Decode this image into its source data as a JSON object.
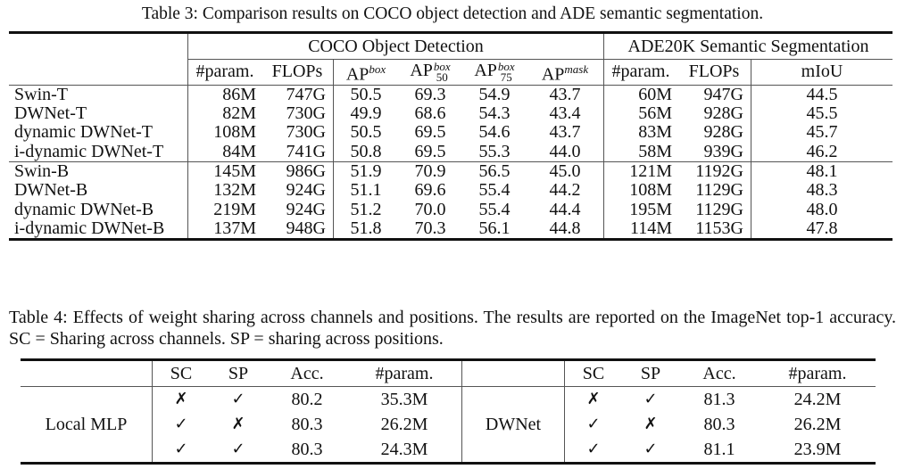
{
  "table3": {
    "caption_label": "Table 3:",
    "caption_text": "Comparison results on COCO object detection and ADE semantic segmentation.",
    "group_headers": [
      "COCO Object Detection",
      "ADE20K Semantic Segmentation"
    ],
    "columns": {
      "coco_param": "#param.",
      "coco_flops": "FLOPs",
      "ap_box_base": "AP",
      "ap_box_sup": "box",
      "ap50_base": "AP",
      "ap50_sup": "box",
      "ap50_sub": "50",
      "ap75_base": "AP",
      "ap75_sup": "box",
      "ap75_sub": "75",
      "apmask_base": "AP",
      "apmask_sup": "mask",
      "ade_param": "#param.",
      "ade_flops": "FLOPs",
      "miou": "mIoU"
    },
    "rows": [
      {
        "name": "Swin-T",
        "cp": "86M",
        "cf": "747G",
        "ap": "50.5",
        "ap50": "69.3",
        "ap75": "54.9",
        "apm": "43.7",
        "ap_": "60M",
        "af": "947G",
        "miou": "44.5"
      },
      {
        "name": "DWNet-T",
        "cp": "82M",
        "cf": "730G",
        "ap": "49.9",
        "ap50": "68.6",
        "ap75": "54.3",
        "apm": "43.4",
        "ap_": "56M",
        "af": "928G",
        "miou": "45.5"
      },
      {
        "name": "dynamic DWNet-T",
        "cp": "108M",
        "cf": "730G",
        "ap": "50.5",
        "ap50": "69.5",
        "ap75": "54.6",
        "apm": "43.7",
        "ap_": "83M",
        "af": "928G",
        "miou": "45.7"
      },
      {
        "name": "i-dynamic DWNet-T",
        "cp": "84M",
        "cf": "741G",
        "ap": "50.8",
        "ap50": "69.5",
        "ap75": "55.3",
        "apm": "44.0",
        "ap_": "58M",
        "af": "939G",
        "miou": "46.2"
      },
      {
        "name": "Swin-B",
        "cp": "145M",
        "cf": "986G",
        "ap": "51.9",
        "ap50": "70.9",
        "ap75": "56.5",
        "apm": "45.0",
        "ap_": "121M",
        "af": "1192G",
        "miou": "48.1"
      },
      {
        "name": "DWNet-B",
        "cp": "132M",
        "cf": "924G",
        "ap": "51.1",
        "ap50": "69.6",
        "ap75": "55.4",
        "apm": "44.2",
        "ap_": "108M",
        "af": "1129G",
        "miou": "48.3"
      },
      {
        "name": "dynamic DWNet-B",
        "cp": "219M",
        "cf": "924G",
        "ap": "51.2",
        "ap50": "70.0",
        "ap75": "55.4",
        "apm": "44.4",
        "ap_": "195M",
        "af": "1129G",
        "miou": "48.0"
      },
      {
        "name": "i-dynamic DWNet-B",
        "cp": "137M",
        "cf": "948G",
        "ap": "51.8",
        "ap50": "70.3",
        "ap75": "56.1",
        "apm": "44.8",
        "ap_": "114M",
        "af": "1153G",
        "miou": "47.8"
      }
    ]
  },
  "table4": {
    "caption_label": "Table 4:",
    "caption_text": "Effects of weight sharing across channels and positions. The results are reported on the ImageNet top-1 accuracy. SC = Sharing across channels. SP = sharing across positions.",
    "columns": [
      "SC",
      "SP",
      "Acc.",
      "#param."
    ],
    "groups": [
      {
        "name": "Local MLP",
        "rows": [
          {
            "sc": "✗",
            "sp": "✓",
            "acc": "80.2",
            "param": "35.3M"
          },
          {
            "sc": "✓",
            "sp": "✗",
            "acc": "80.3",
            "param": "26.2M"
          },
          {
            "sc": "✓",
            "sp": "✓",
            "acc": "80.3",
            "param": "24.3M"
          }
        ]
      },
      {
        "name": "DWNet",
        "rows": [
          {
            "sc": "✗",
            "sp": "✓",
            "acc": "81.3",
            "param": "24.2M"
          },
          {
            "sc": "✓",
            "sp": "✗",
            "acc": "80.3",
            "param": "26.2M"
          },
          {
            "sc": "✓",
            "sp": "✓",
            "acc": "81.1",
            "param": "23.9M"
          }
        ]
      }
    ]
  }
}
